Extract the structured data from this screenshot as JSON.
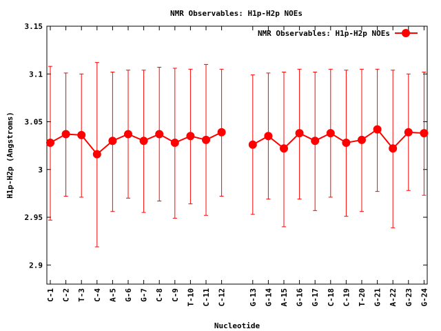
{
  "chart_data": {
    "type": "line",
    "title": "NMR Observables: H1p-H2p NOEs",
    "xlabel": "Nucleotide",
    "ylabel": "H1p-H2p (Angstroms)",
    "ylim": [
      2.88,
      3.15
    ],
    "yticks": [
      "2.9",
      "2.95",
      "3",
      "3.05",
      "3.1",
      "3.15"
    ],
    "ytick_values": [
      2.9,
      2.95,
      3.0,
      3.05,
      3.1,
      3.15
    ],
    "categories": [
      "C-1",
      "C-2",
      "T-3",
      "C-4",
      "A-5",
      "G-6",
      "G-7",
      "C-8",
      "C-9",
      "T-10",
      "C-11",
      "C-12",
      "G-13",
      "G-14",
      "A-15",
      "G-16",
      "G-17",
      "C-18",
      "C-19",
      "T-20",
      "G-21",
      "A-22",
      "G-23",
      "G-24"
    ],
    "gap_after_index": 11,
    "grid": false,
    "legend_position": "top-right",
    "series": [
      {
        "name": "NMR Observables: H1p-H2p NOEs",
        "color": "#ff0000",
        "values": [
          3.028,
          3.037,
          3.036,
          3.016,
          3.03,
          3.037,
          3.03,
          3.037,
          3.028,
          3.035,
          3.031,
          3.039,
          3.026,
          3.035,
          3.022,
          3.038,
          3.03,
          3.038,
          3.028,
          3.031,
          3.042,
          3.022,
          3.039,
          3.038
        ],
        "err_low": [
          2.947,
          2.972,
          2.971,
          2.919,
          2.956,
          2.97,
          2.955,
          2.967,
          2.949,
          2.964,
          2.952,
          2.972,
          2.953,
          2.969,
          2.94,
          2.969,
          2.957,
          2.971,
          2.951,
          2.956,
          2.977,
          2.939,
          2.978,
          2.973
        ],
        "err_high": [
          3.108,
          3.101,
          3.1,
          3.112,
          3.102,
          3.104,
          3.104,
          3.107,
          3.106,
          3.105,
          3.11,
          3.105,
          3.099,
          3.101,
          3.102,
          3.105,
          3.102,
          3.105,
          3.104,
          3.105,
          3.105,
          3.104,
          3.1,
          3.102
        ]
      }
    ]
  }
}
